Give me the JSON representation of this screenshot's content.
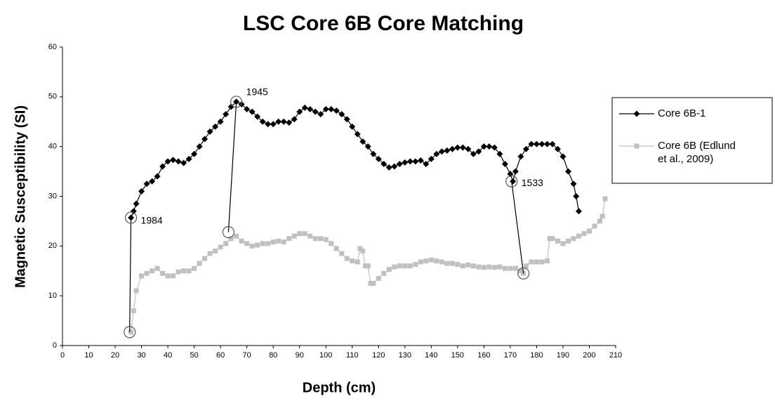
{
  "chart_data": {
    "type": "line",
    "title": "LSC Core 6B Core Matching",
    "x_label": "Depth (cm)",
    "y_label": "Magnetic Susceptibility (SI)",
    "xlim": [
      0,
      210
    ],
    "xticks": [
      0,
      10,
      20,
      30,
      40,
      50,
      60,
      70,
      80,
      90,
      100,
      110,
      120,
      130,
      140,
      150,
      160,
      170,
      180,
      190,
      200,
      210
    ],
    "ylim": [
      0,
      60
    ],
    "yticks": [
      0,
      10,
      20,
      30,
      40,
      50,
      60
    ],
    "grid": false,
    "legend": "right",
    "series": [
      {
        "name": "Core 6B-1",
        "color": "#000000",
        "marker": "diamond",
        "x": [
          26,
          27,
          28,
          30,
          32,
          34,
          36,
          38,
          40,
          42,
          44,
          46,
          48,
          50,
          52,
          54,
          56,
          58,
          60,
          62,
          64,
          66,
          68,
          70,
          72,
          74,
          76,
          78,
          80,
          82,
          84,
          86,
          88,
          90,
          92,
          94,
          96,
          98,
          100,
          102,
          104,
          106,
          108,
          110,
          112,
          114,
          116,
          118,
          120,
          122,
          124,
          126,
          128,
          130,
          132,
          134,
          136,
          138,
          140,
          142,
          144,
          146,
          148,
          150,
          152,
          154,
          156,
          158,
          160,
          162,
          164,
          166,
          168,
          170,
          171,
          172,
          174,
          176,
          178,
          180,
          182,
          184,
          186,
          188,
          190,
          192,
          194,
          195,
          196
        ],
        "values": [
          25.7,
          27,
          28.5,
          31,
          32.5,
          33,
          34,
          36,
          37,
          37.3,
          37,
          36.7,
          37.5,
          38.5,
          40,
          41.5,
          43,
          44,
          45,
          46.5,
          48,
          49,
          48.5,
          47.5,
          47,
          46,
          45,
          44.5,
          44.5,
          45,
          45,
          44.8,
          45.5,
          47,
          47.8,
          47.5,
          47,
          46.5,
          47.5,
          47.5,
          47.2,
          46.5,
          45.5,
          44,
          42.5,
          41,
          40,
          38.5,
          37.5,
          36.5,
          35.8,
          36,
          36.5,
          36.8,
          37,
          37,
          37.2,
          36.5,
          37.5,
          38.5,
          39,
          39.2,
          39.5,
          39.8,
          39.8,
          39.5,
          38.5,
          39,
          40,
          40,
          39.8,
          38.5,
          36.5,
          34.5,
          33,
          35,
          38,
          39.5,
          40.5,
          40.5,
          40.5,
          40.5,
          40.5,
          39.5,
          38,
          35,
          32.5,
          30,
          27
        ]
      },
      {
        "name": "Core 6B (Edlund et al., 2009)",
        "color": "#c0c0c0",
        "marker": "square",
        "x": [
          26,
          27,
          28,
          30,
          32,
          34,
          36,
          38,
          40,
          42,
          44,
          46,
          48,
          50,
          52,
          54,
          56,
          58,
          60,
          62,
          64,
          66,
          68,
          70,
          72,
          74,
          76,
          78,
          80,
          82,
          84,
          86,
          88,
          90,
          92,
          94,
          96,
          98,
          100,
          102,
          104,
          106,
          108,
          110,
          112,
          113,
          114,
          115,
          116,
          117,
          118,
          120,
          122,
          124,
          126,
          128,
          130,
          132,
          134,
          136,
          138,
          140,
          142,
          144,
          146,
          148,
          150,
          152,
          154,
          156,
          158,
          160,
          162,
          164,
          166,
          168,
          170,
          172,
          174,
          175,
          176,
          178,
          180,
          182,
          184,
          185,
          186,
          188,
          190,
          192,
          194,
          196,
          198,
          200,
          202,
          204,
          205,
          206
        ],
        "values": [
          2.7,
          7,
          11,
          14,
          14.5,
          15,
          15.5,
          14.5,
          14,
          14,
          14.8,
          15,
          15,
          15.5,
          16.5,
          17.5,
          18.5,
          19,
          19.8,
          20.5,
          21.5,
          22,
          21,
          20.5,
          20,
          20.2,
          20.5,
          20.5,
          20.8,
          21,
          20.8,
          21.5,
          22,
          22.5,
          22.5,
          22,
          21.5,
          21.5,
          21.3,
          20.5,
          19.5,
          18.5,
          17.5,
          17,
          16.8,
          19.5,
          19,
          16,
          16,
          12.5,
          12.5,
          13.5,
          14.5,
          15.3,
          15.8,
          16,
          16,
          16,
          16.3,
          16.8,
          17,
          17.2,
          17,
          16.8,
          16.5,
          16.5,
          16.3,
          16,
          16.2,
          16,
          15.8,
          15.7,
          15.8,
          15.7,
          15.8,
          15.5,
          15.5,
          15.5,
          15,
          14.5,
          16,
          16.8,
          16.8,
          16.8,
          17,
          21.5,
          21.5,
          21,
          20.5,
          21,
          21.5,
          22,
          22.5,
          23,
          24,
          25,
          26,
          29.5
        ]
      }
    ],
    "annotations": [
      {
        "label": "1984",
        "x": 26,
        "y": 25.7,
        "match_x": 25.5,
        "match_y": 2.7
      },
      {
        "label": "1945",
        "x": 66,
        "y": 49,
        "match_x": 63,
        "match_y": 22.8
      },
      {
        "label": "1533",
        "x": 170.5,
        "y": 33,
        "match_x": 175,
        "match_y": 14.5
      }
    ]
  }
}
